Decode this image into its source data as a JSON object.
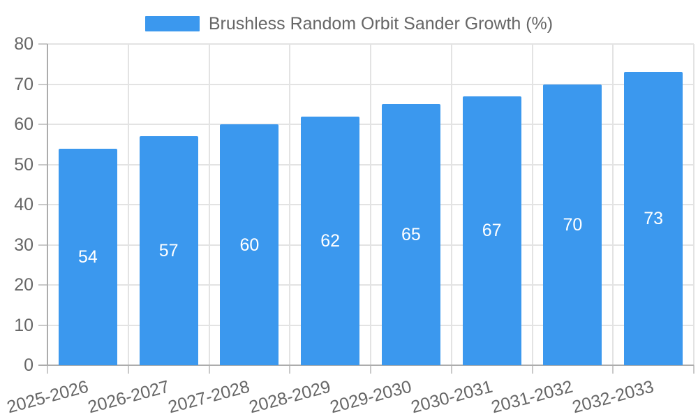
{
  "chart_data": {
    "type": "bar",
    "title": "Brushless Random Orbit Sander Growth (%)",
    "categories": [
      "2025-2026",
      "2026-2027",
      "2027-2028",
      "2028-2029",
      "2029-2030",
      "2030-2031",
      "2031-2032",
      "2032-2033"
    ],
    "values": [
      54,
      57,
      60,
      62,
      65,
      67,
      70,
      73
    ],
    "xlabel": "",
    "ylabel": "",
    "ylim": [
      0,
      80
    ],
    "ytick_step": 10,
    "yticks": [
      0,
      10,
      20,
      30,
      40,
      50,
      60,
      70,
      80
    ],
    "grid": true,
    "legend_position": "top-center",
    "bar_color": "#3B98EE",
    "value_label_color": "#ffffff",
    "axis_text_color": "#666666"
  }
}
